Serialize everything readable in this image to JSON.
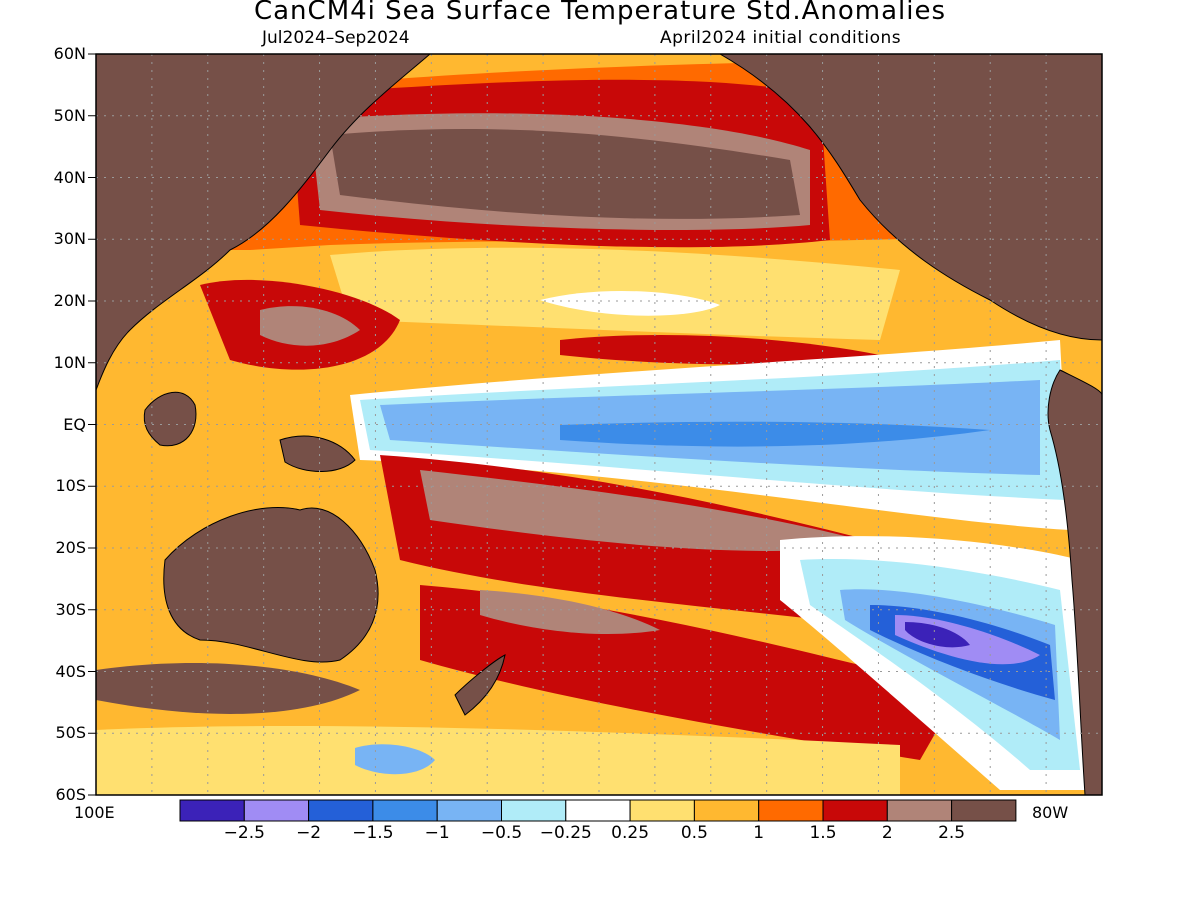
{
  "title": "CanCM4i Sea Surface Temperature Std.Anomalies",
  "subtitle_left": "Jul2024–Sep2024",
  "subtitle_right": "April2024 initial conditions",
  "lat_labels": [
    "60N",
    "50N",
    "40N",
    "30N",
    "20N",
    "10N",
    "EQ",
    "10S",
    "20S",
    "30S",
    "40S",
    "50S",
    "60S"
  ],
  "lon_labels": {
    "west": "100E",
    "east": "80W"
  },
  "colorbar": {
    "labels": [
      "−2.5",
      "−2",
      "−1.5",
      "−1",
      "−0.5",
      "−0.25",
      "0.25",
      "0.5",
      "1",
      "1.5",
      "2",
      "2.5"
    ],
    "colors": [
      "#3b22b8",
      "#a08cf4",
      "#2460d8",
      "#3c8ce8",
      "#78b4f4",
      "#b0ecf8",
      "#ffffff",
      "#ffe070",
      "#ffb830",
      "#ff6a00",
      "#c80808",
      "#b08478",
      "#765048"
    ]
  },
  "colors": {
    "land": "#765048",
    "ocean_warm": "#ffb830",
    "coastline": "#000000",
    "grid": "#9a9a9a"
  }
}
